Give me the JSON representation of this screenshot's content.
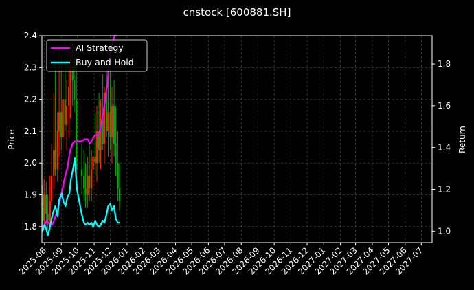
{
  "chart_data": {
    "type": "line",
    "title": "cnstock [600881.SH]",
    "ylabel": "Price",
    "y2label": "Return",
    "ylim": [
      1.75,
      2.4
    ],
    "y2lim": [
      0.945,
      1.935
    ],
    "xlim": [
      "2025-07-27",
      "2027-07-21"
    ],
    "y_ticks": [
      "1.8",
      "1.9",
      "2.0",
      "2.1",
      "2.2",
      "2.3",
      "2.4"
    ],
    "y2_ticks": [
      "1.0",
      "1.2",
      "1.4",
      "1.6",
      "1.8"
    ],
    "x_ticks": [
      "2025-08",
      "2025-09",
      "2025-10",
      "2025-11",
      "2025-12",
      "2026-01",
      "2026-02",
      "2026-03",
      "2026-04",
      "2026-05",
      "2026-06",
      "2026-07",
      "2026-08",
      "2026-09",
      "2026-10",
      "2026-11",
      "2026-12",
      "2027-01",
      "2027-02",
      "2027-03",
      "2027-04",
      "2027-05",
      "2027-06",
      "2027-07"
    ],
    "grid": true,
    "legend_position": "top-left",
    "colors": {
      "background": "#000000",
      "strategy": "#ff00ff",
      "buyhold": "#00ffff",
      "candle_up": "#ff2200",
      "candle_down": "#00aa00",
      "grid": "#555555"
    },
    "series": [
      {
        "name": "AI Strategy",
        "axis": "right",
        "x": [
          "2025-07-28",
          "2025-08-01",
          "2025-08-05",
          "2025-08-08",
          "2025-08-12",
          "2025-08-15",
          "2025-08-20",
          "2025-08-25",
          "2025-08-29",
          "2025-09-03",
          "2025-09-08",
          "2025-09-12",
          "2025-09-17",
          "2025-09-22",
          "2025-09-26",
          "2025-10-01",
          "2025-10-09",
          "2025-10-14",
          "2025-10-20",
          "2025-10-24",
          "2025-10-29",
          "2025-11-03",
          "2025-11-07",
          "2025-11-12",
          "2025-11-17",
          "2025-11-21",
          "2025-11-24",
          "2025-11-26",
          "2025-11-28",
          "2025-12-02",
          "2025-12-05",
          "2025-12-09",
          "2025-12-12"
        ],
        "values": [
          1.02,
          1.03,
          1.05,
          1.04,
          1.03,
          1.03,
          1.06,
          1.1,
          1.14,
          1.2,
          1.26,
          1.3,
          1.38,
          1.42,
          1.43,
          1.43,
          1.43,
          1.44,
          1.44,
          1.42,
          1.44,
          1.46,
          1.46,
          1.48,
          1.55,
          1.62,
          1.68,
          1.7,
          1.8,
          1.86,
          1.9,
          1.95,
          1.95
        ]
      },
      {
        "name": "Buy-and-Hold",
        "axis": "right",
        "x": [
          "2025-07-28",
          "2025-08-01",
          "2025-08-04",
          "2025-08-07",
          "2025-08-11",
          "2025-08-14",
          "2025-08-18",
          "2025-08-21",
          "2025-08-25",
          "2025-08-28",
          "2025-09-02",
          "2025-09-05",
          "2025-09-09",
          "2025-09-12",
          "2025-09-16",
          "2025-09-19",
          "2025-09-23",
          "2025-09-26",
          "2025-09-30",
          "2025-10-09",
          "2025-10-13",
          "2025-10-16",
          "2025-10-20",
          "2025-10-23",
          "2025-10-27",
          "2025-10-30",
          "2025-11-03",
          "2025-11-06",
          "2025-11-10",
          "2025-11-13",
          "2025-11-17",
          "2025-11-20",
          "2025-11-24",
          "2025-11-27",
          "2025-12-01",
          "2025-12-04",
          "2025-12-08",
          "2025-12-11",
          "2025-12-15",
          "2025-12-18"
        ],
        "values": [
          1.0,
          1.03,
          1.01,
          0.98,
          1.02,
          1.06,
          1.1,
          1.12,
          1.07,
          1.15,
          1.18,
          1.14,
          1.12,
          1.16,
          1.18,
          1.25,
          1.3,
          1.35,
          1.2,
          1.08,
          1.04,
          1.03,
          1.04,
          1.03,
          1.04,
          1.02,
          1.05,
          1.03,
          1.02,
          1.03,
          1.05,
          1.04,
          1.08,
          1.12,
          1.13,
          1.1,
          1.12,
          1.06,
          1.04,
          1.04
        ]
      }
    ],
    "candles": {
      "description_axis": "left",
      "x": [
        "2025-07-28",
        "2025-07-31",
        "2025-08-04",
        "2025-08-07",
        "2025-08-11",
        "2025-08-14",
        "2025-08-18",
        "2025-08-21",
        "2025-08-25",
        "2025-08-28",
        "2025-09-01",
        "2025-09-04",
        "2025-09-08",
        "2025-09-11",
        "2025-09-15",
        "2025-09-18",
        "2025-09-22",
        "2025-09-25",
        "2025-09-29",
        "2025-10-09",
        "2025-10-13",
        "2025-10-16",
        "2025-10-20",
        "2025-10-23",
        "2025-10-27",
        "2025-10-30",
        "2025-11-03",
        "2025-11-06",
        "2025-11-10",
        "2025-11-13",
        "2025-11-17",
        "2025-11-20",
        "2025-11-24",
        "2025-11-27",
        "2025-12-01",
        "2025-12-04",
        "2025-12-08",
        "2025-12-11",
        "2025-12-15",
        "2025-12-18"
      ],
      "open": [
        1.86,
        1.82,
        1.9,
        1.84,
        1.82,
        1.88,
        1.96,
        2.04,
        1.98,
        2.1,
        2.16,
        2.08,
        2.2,
        2.12,
        2.18,
        2.24,
        2.3,
        2.26,
        2.2,
        1.98,
        1.96,
        1.92,
        1.9,
        1.96,
        1.92,
        1.98,
        2.02,
        2.0,
        2.1,
        2.04,
        2.14,
        2.06,
        2.22,
        2.1,
        2.16,
        2.08,
        2.18,
        2.06,
        2.0,
        1.92
      ],
      "high": [
        1.93,
        1.95,
        1.94,
        1.9,
        1.96,
        2.06,
        2.22,
        2.32,
        2.16,
        2.36,
        2.34,
        2.28,
        2.38,
        2.26,
        2.32,
        2.38,
        2.38,
        2.36,
        2.32,
        2.06,
        2.04,
        2.0,
        2.02,
        2.06,
        2.04,
        2.08,
        2.16,
        2.18,
        2.22,
        2.2,
        2.28,
        2.24,
        2.34,
        2.26,
        2.3,
        2.24,
        2.26,
        2.18,
        2.1,
        2.0
      ],
      "low": [
        1.78,
        1.79,
        1.82,
        1.79,
        1.8,
        1.86,
        1.92,
        1.96,
        1.94,
        2.02,
        2.04,
        2.02,
        2.1,
        2.04,
        2.08,
        2.14,
        2.18,
        2.16,
        1.96,
        1.9,
        1.88,
        1.86,
        1.86,
        1.88,
        1.88,
        1.92,
        1.96,
        1.94,
        2.0,
        1.98,
        2.04,
        2.0,
        2.08,
        2.02,
        2.04,
        2.0,
        2.02,
        1.96,
        1.88,
        1.85
      ],
      "close": [
        1.82,
        1.9,
        1.84,
        1.82,
        1.88,
        1.96,
        2.04,
        1.98,
        2.1,
        2.16,
        2.08,
        2.2,
        2.12,
        2.18,
        2.24,
        2.3,
        2.26,
        2.2,
        1.98,
        1.96,
        1.92,
        1.9,
        1.96,
        1.92,
        1.98,
        2.02,
        2.0,
        2.1,
        2.04,
        2.14,
        2.06,
        2.22,
        2.1,
        2.16,
        2.08,
        2.18,
        2.06,
        2.0,
        1.92,
        1.88
      ]
    }
  }
}
